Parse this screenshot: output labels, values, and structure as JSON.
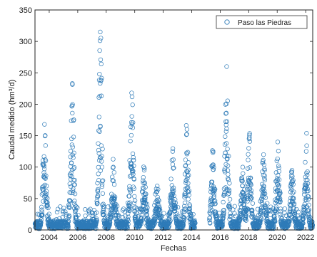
{
  "chart_data": {
    "type": "scatter",
    "xlabel": "Fechas",
    "ylabel": "Caudal medido (hm³/d)",
    "ylim": [
      0,
      350
    ],
    "xlim": [
      "2003-01-01",
      "2022-06-30"
    ],
    "yticks": [
      "0",
      "50",
      "100",
      "150",
      "200",
      "250",
      "300",
      "350"
    ],
    "xticks": [
      "2004",
      "2006",
      "2008",
      "2010",
      "2012",
      "2014",
      "2016",
      "2018",
      "2020",
      "2022"
    ],
    "grid": false,
    "legend_position": "top-right",
    "marker_color": "#2e7bb8",
    "series": [
      {
        "name": "Paso las Piedras",
        "marker": "open-circle",
        "peaks": [
          {
            "date": "2003-09-01",
            "value": 168
          },
          {
            "date": "2005-08-15",
            "value": 233
          },
          {
            "date": "2007-08-01",
            "value": 315
          },
          {
            "date": "2008-07-01",
            "value": 100
          },
          {
            "date": "2009-10-15",
            "value": 218
          },
          {
            "date": "2010-09-01",
            "value": 95
          },
          {
            "date": "2011-08-01",
            "value": 70
          },
          {
            "date": "2012-09-01",
            "value": 125
          },
          {
            "date": "2013-09-01",
            "value": 160
          },
          {
            "date": "2015-07-01",
            "value": 125
          },
          {
            "date": "2016-06-15",
            "value": 260
          },
          {
            "date": "2017-08-01",
            "value": 100
          },
          {
            "date": "2018-01-15",
            "value": 145
          },
          {
            "date": "2019-01-15",
            "value": 120
          },
          {
            "date": "2020-01-15",
            "value": 140
          },
          {
            "date": "2021-01-15",
            "value": 95
          },
          {
            "date": "2022-01-15",
            "value": 125
          }
        ],
        "gaps": [
          {
            "from": "2014-04-01",
            "to": "2015-03-31"
          }
        ]
      }
    ]
  }
}
